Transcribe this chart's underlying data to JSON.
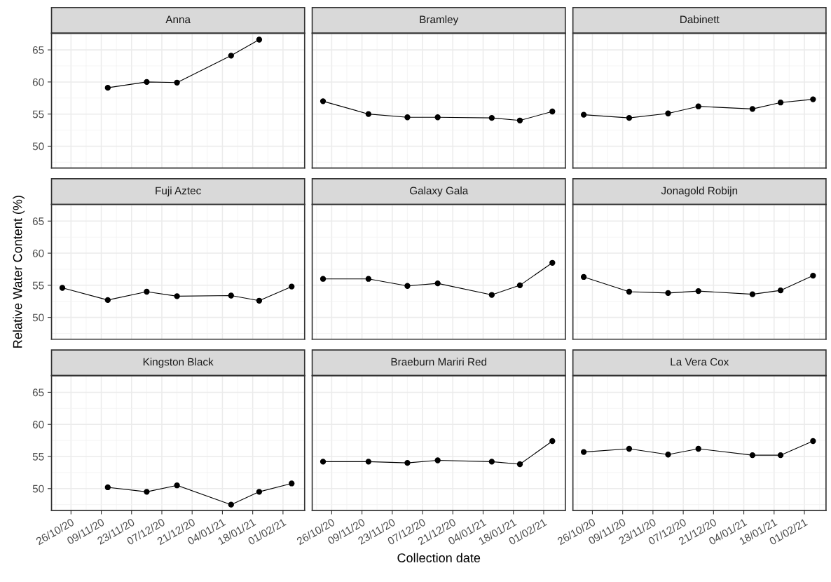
{
  "chart_data": [
    {
      "type": "line",
      "title": "Anna",
      "x": [
        "2020-11-12",
        "2020-11-30",
        "2020-12-14",
        "2021-01-08",
        "2021-01-21"
      ],
      "series": [
        {
          "color": "#000000",
          "values": [
            59.1,
            60.0,
            59.9,
            64.1,
            66.6
          ]
        }
      ],
      "xlim": [
        "2020-10-17",
        "2021-02-11"
      ],
      "ylim": [
        46.6,
        67.6
      ],
      "xticks": [
        {
          "value": "2020-10-26",
          "label": null
        },
        {
          "value": "2020-11-09",
          "label": null
        },
        {
          "value": "2020-11-23",
          "label": null
        },
        {
          "value": "2020-12-07",
          "label": null
        },
        {
          "value": "2020-12-21",
          "label": null
        },
        {
          "value": "2021-01-04",
          "label": null
        },
        {
          "value": "2021-01-18",
          "label": null
        },
        {
          "value": "2021-02-01",
          "label": null
        }
      ],
      "yticks": [
        50,
        55,
        60,
        65
      ],
      "grid": true,
      "marker": "circle",
      "line_style": "solid",
      "tick_labels": "y"
    },
    {
      "type": "line",
      "title": "Bramley",
      "x": [
        "2020-10-22",
        "2020-11-12",
        "2020-11-30",
        "2020-12-14",
        "2021-01-08",
        "2021-01-21",
        "2021-02-05"
      ],
      "series": [
        {
          "color": "#000000",
          "values": [
            57.0,
            55.0,
            54.5,
            54.5,
            54.4,
            54.0,
            55.4
          ]
        }
      ],
      "xlim": [
        "2020-10-17",
        "2021-02-11"
      ],
      "ylim": [
        46.6,
        67.6
      ],
      "xticks": [
        {
          "value": "2020-10-26",
          "label": null
        },
        {
          "value": "2020-11-09",
          "label": null
        },
        {
          "value": "2020-11-23",
          "label": null
        },
        {
          "value": "2020-12-07",
          "label": null
        },
        {
          "value": "2020-12-21",
          "label": null
        },
        {
          "value": "2021-01-04",
          "label": null
        },
        {
          "value": "2021-01-18",
          "label": null
        },
        {
          "value": "2021-02-01",
          "label": null
        }
      ],
      "yticks": [
        50,
        55,
        60,
        65
      ],
      "grid": true,
      "marker": "circle",
      "line_style": "solid",
      "tick_labels": false
    },
    {
      "type": "line",
      "title": "Dabinett",
      "x": [
        "2020-10-22",
        "2020-11-12",
        "2020-11-30",
        "2020-12-14",
        "2021-01-08",
        "2021-01-21",
        "2021-02-05"
      ],
      "series": [
        {
          "color": "#000000",
          "values": [
            54.9,
            54.4,
            55.1,
            56.2,
            55.8,
            56.8,
            57.3
          ]
        }
      ],
      "xlim": [
        "2020-10-17",
        "2021-02-11"
      ],
      "ylim": [
        46.6,
        67.6
      ],
      "xticks": [
        {
          "value": "2020-10-26",
          "label": null
        },
        {
          "value": "2020-11-09",
          "label": null
        },
        {
          "value": "2020-11-23",
          "label": null
        },
        {
          "value": "2020-12-07",
          "label": null
        },
        {
          "value": "2020-12-21",
          "label": null
        },
        {
          "value": "2021-01-04",
          "label": null
        },
        {
          "value": "2021-01-18",
          "label": null
        },
        {
          "value": "2021-02-01",
          "label": null
        }
      ],
      "yticks": [
        50,
        55,
        60,
        65
      ],
      "grid": true,
      "marker": "circle",
      "line_style": "solid",
      "tick_labels": false
    },
    {
      "type": "line",
      "title": "Fuji Aztec",
      "ylabel": "Relative Water Content (%)",
      "x": [
        "2020-10-22",
        "2020-11-12",
        "2020-11-30",
        "2020-12-14",
        "2021-01-08",
        "2021-01-21",
        "2021-02-05"
      ],
      "series": [
        {
          "color": "#000000",
          "values": [
            54.6,
            52.7,
            54.0,
            53.3,
            53.4,
            52.6,
            54.8
          ]
        }
      ],
      "xlim": [
        "2020-10-17",
        "2021-02-11"
      ],
      "ylim": [
        46.6,
        67.6
      ],
      "xticks": [
        {
          "value": "2020-10-26",
          "label": null
        },
        {
          "value": "2020-11-09",
          "label": null
        },
        {
          "value": "2020-11-23",
          "label": null
        },
        {
          "value": "2020-12-07",
          "label": null
        },
        {
          "value": "2020-12-21",
          "label": null
        },
        {
          "value": "2021-01-04",
          "label": null
        },
        {
          "value": "2021-01-18",
          "label": null
        },
        {
          "value": "2021-02-01",
          "label": null
        }
      ],
      "yticks": [
        50,
        55,
        60,
        65
      ],
      "grid": true,
      "marker": "circle",
      "line_style": "solid",
      "tick_labels": "y"
    },
    {
      "type": "line",
      "title": "Galaxy Gala",
      "x": [
        "2020-10-22",
        "2020-11-12",
        "2020-11-30",
        "2020-12-14",
        "2021-01-08",
        "2021-01-21",
        "2021-02-05"
      ],
      "series": [
        {
          "color": "#000000",
          "values": [
            56.0,
            56.0,
            54.9,
            55.3,
            53.5,
            55.0,
            58.5
          ]
        }
      ],
      "xlim": [
        "2020-10-17",
        "2021-02-11"
      ],
      "ylim": [
        46.6,
        67.6
      ],
      "xticks": [
        {
          "value": "2020-10-26",
          "label": null
        },
        {
          "value": "2020-11-09",
          "label": null
        },
        {
          "value": "2020-11-23",
          "label": null
        },
        {
          "value": "2020-12-07",
          "label": null
        },
        {
          "value": "2020-12-21",
          "label": null
        },
        {
          "value": "2021-01-04",
          "label": null
        },
        {
          "value": "2021-01-18",
          "label": null
        },
        {
          "value": "2021-02-01",
          "label": null
        }
      ],
      "yticks": [
        50,
        55,
        60,
        65
      ],
      "grid": true,
      "marker": "circle",
      "line_style": "solid",
      "tick_labels": false
    },
    {
      "type": "line",
      "title": "Jonagold Robijn",
      "x": [
        "2020-10-22",
        "2020-11-12",
        "2020-11-30",
        "2020-12-14",
        "2021-01-08",
        "2021-01-21",
        "2021-02-05"
      ],
      "series": [
        {
          "color": "#000000",
          "values": [
            56.3,
            54.0,
            53.8,
            54.1,
            53.6,
            54.2,
            56.5
          ]
        }
      ],
      "xlim": [
        "2020-10-17",
        "2021-02-11"
      ],
      "ylim": [
        46.6,
        67.6
      ],
      "xticks": [
        {
          "value": "2020-10-26",
          "label": null
        },
        {
          "value": "2020-11-09",
          "label": null
        },
        {
          "value": "2020-11-23",
          "label": null
        },
        {
          "value": "2020-12-07",
          "label": null
        },
        {
          "value": "2020-12-21",
          "label": null
        },
        {
          "value": "2021-01-04",
          "label": null
        },
        {
          "value": "2021-01-18",
          "label": null
        },
        {
          "value": "2021-02-01",
          "label": null
        }
      ],
      "yticks": [
        50,
        55,
        60,
        65
      ],
      "grid": true,
      "marker": "circle",
      "line_style": "solid",
      "tick_labels": false
    },
    {
      "type": "line",
      "title": "Kingston Black",
      "x": [
        "2020-11-12",
        "2020-11-30",
        "2020-12-14",
        "2021-01-08",
        "2021-01-21",
        "2021-02-05"
      ],
      "series": [
        {
          "color": "#000000",
          "values": [
            50.2,
            49.5,
            50.5,
            47.5,
            49.5,
            50.8
          ]
        }
      ],
      "xlim": [
        "2020-10-17",
        "2021-02-11"
      ],
      "ylim": [
        46.6,
        67.6
      ],
      "xticks": [
        {
          "value": "2020-10-26",
          "label": "26/10/20"
        },
        {
          "value": "2020-11-09",
          "label": "09/11/20"
        },
        {
          "value": "2020-11-23",
          "label": "23/11/20"
        },
        {
          "value": "2020-12-07",
          "label": "07/12/20"
        },
        {
          "value": "2020-12-21",
          "label": "21/12/20"
        },
        {
          "value": "2021-01-04",
          "label": "04/01/21"
        },
        {
          "value": "2021-01-18",
          "label": "18/01/21"
        },
        {
          "value": "2021-02-01",
          "label": "01/02/21"
        }
      ],
      "yticks": [
        50,
        55,
        60,
        65
      ],
      "grid": true,
      "marker": "circle",
      "line_style": "solid"
    },
    {
      "type": "line",
      "title": "Braeburn Mariri Red",
      "xlabel": "Collection date",
      "x": [
        "2020-10-22",
        "2020-11-12",
        "2020-11-30",
        "2020-12-14",
        "2021-01-08",
        "2021-01-21",
        "2021-02-05"
      ],
      "series": [
        {
          "color": "#000000",
          "values": [
            54.2,
            54.2,
            54.0,
            54.4,
            54.2,
            53.8,
            57.4
          ]
        }
      ],
      "xlim": [
        "2020-10-17",
        "2021-02-11"
      ],
      "ylim": [
        46.6,
        67.6
      ],
      "xticks": [
        {
          "value": "2020-10-26",
          "label": "26/10/20"
        },
        {
          "value": "2020-11-09",
          "label": "09/11/20"
        },
        {
          "value": "2020-11-23",
          "label": "23/11/20"
        },
        {
          "value": "2020-12-07",
          "label": "07/12/20"
        },
        {
          "value": "2020-12-21",
          "label": "21/12/20"
        },
        {
          "value": "2021-01-04",
          "label": "04/01/21"
        },
        {
          "value": "2021-01-18",
          "label": "18/01/21"
        },
        {
          "value": "2021-02-01",
          "label": "01/02/21"
        }
      ],
      "yticks": [
        50,
        55,
        60,
        65
      ],
      "grid": true,
      "marker": "circle",
      "line_style": "solid",
      "tick_labels": "x"
    },
    {
      "type": "line",
      "title": "La Vera Cox",
      "x": [
        "2020-10-22",
        "2020-11-12",
        "2020-11-30",
        "2020-12-14",
        "2021-01-08",
        "2021-01-21",
        "2021-02-05"
      ],
      "series": [
        {
          "color": "#000000",
          "values": [
            55.7,
            56.2,
            55.3,
            56.2,
            55.2,
            55.2,
            57.4
          ]
        }
      ],
      "xlim": [
        "2020-10-17",
        "2021-02-11"
      ],
      "ylim": [
        46.6,
        67.6
      ],
      "xticks": [
        {
          "value": "2020-10-26",
          "label": "26/10/20"
        },
        {
          "value": "2020-11-09",
          "label": "09/11/20"
        },
        {
          "value": "2020-11-23",
          "label": "23/11/20"
        },
        {
          "value": "2020-12-07",
          "label": "07/12/20"
        },
        {
          "value": "2020-12-21",
          "label": "21/12/20"
        },
        {
          "value": "2021-01-04",
          "label": "04/01/21"
        },
        {
          "value": "2021-01-18",
          "label": "18/01/21"
        },
        {
          "value": "2021-02-01",
          "label": "01/02/21"
        }
      ],
      "yticks": [
        50,
        55,
        60,
        65
      ],
      "grid": true,
      "marker": "circle",
      "line_style": "solid",
      "tick_labels": "x"
    }
  ]
}
